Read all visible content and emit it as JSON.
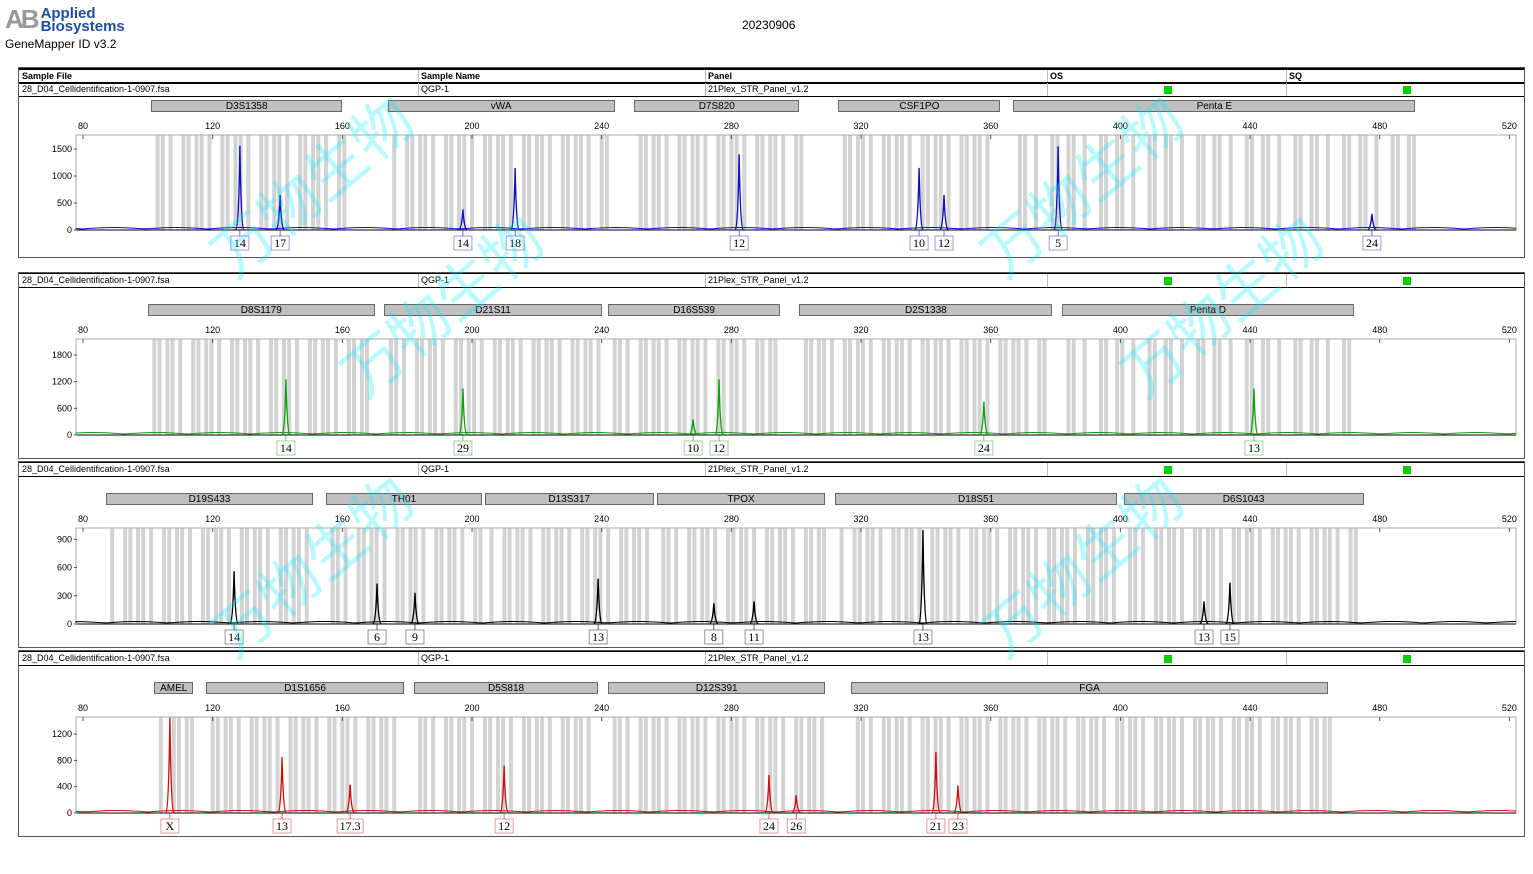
{
  "header": {
    "logo_text": "AB Applied Biosystems",
    "logo_line1": "Applied",
    "logo_line2": "Biosystems",
    "software": "GeneMapper ID v3.2",
    "date": "20230906"
  },
  "table_headers": {
    "sample_file": "Sample File",
    "sample_name": "Sample Name",
    "panel": "Panel",
    "os": "OS",
    "sq": "SQ"
  },
  "watermark": "万物生物",
  "colors": {
    "blue": "#1010c0",
    "green": "#10a010",
    "black": "#000000",
    "red": "#d01010",
    "bin": "#d3d3d3",
    "quality_ok": "#00d000"
  },
  "chart_data": [
    {
      "type": "line",
      "sample_file": "28_D04_Cellidentification-1-0907.fsa",
      "sample_name": "QGP-1",
      "panel": "21Plex_STR_Panel_v1.2",
      "os": "pass",
      "sq": "pass",
      "dye": "blue",
      "xlim": [
        80,
        520
      ],
      "xticks": [
        80,
        120,
        160,
        200,
        240,
        280,
        320,
        360,
        400,
        440,
        480,
        520
      ],
      "ylim": [
        0,
        1760
      ],
      "yticks": [
        0,
        500,
        1000,
        1500
      ],
      "markers": [
        {
          "name": "D3S1358",
          "range": [
            101,
            160
          ]
        },
        {
          "name": "vWA",
          "range": [
            174,
            244
          ]
        },
        {
          "name": "D7S820",
          "range": [
            250,
            301
          ]
        },
        {
          "name": "CSF1PO",
          "range": [
            313,
            363
          ]
        },
        {
          "name": "Penta E",
          "range": [
            367,
            491
          ]
        }
      ],
      "peaks": [
        {
          "size": 128.4,
          "height": 1560,
          "allele": "14"
        },
        {
          "size": 140.8,
          "height": 650,
          "allele": "17"
        },
        {
          "size": 197.2,
          "height": 380,
          "allele": "14"
        },
        {
          "size": 213.3,
          "height": 1150,
          "allele": "18"
        },
        {
          "size": 282.4,
          "height": 1400,
          "allele": "12"
        },
        {
          "size": 337.9,
          "height": 1150,
          "allele": "10"
        },
        {
          "size": 345.6,
          "height": 650,
          "allele": "12"
        },
        {
          "size": 380.8,
          "height": 1550,
          "allele": "5"
        },
        {
          "size": 477.6,
          "height": 300,
          "allele": "24"
        }
      ]
    },
    {
      "type": "line",
      "sample_file": "28_D04_Cellidentification-1-0907.fsa",
      "sample_name": "QGP-1",
      "panel": "21Plex_STR_Panel_v1.2",
      "os": "pass",
      "sq": "pass",
      "dye": "green",
      "xlim": [
        80,
        520
      ],
      "xticks": [
        80,
        120,
        160,
        200,
        240,
        280,
        320,
        360,
        400,
        440,
        480,
        520
      ],
      "ylim": [
        0,
        2160
      ],
      "yticks": [
        0,
        600,
        1200,
        1800
      ],
      "markers": [
        {
          "name": "D8S1179",
          "range": [
            100,
            170
          ]
        },
        {
          "name": "D21S11",
          "range": [
            173,
            240
          ]
        },
        {
          "name": "D16S539",
          "range": [
            242,
            295
          ]
        },
        {
          "name": "D2S1338",
          "range": [
            301,
            379
          ]
        },
        {
          "name": "Penta D",
          "range": [
            382,
            472
          ]
        }
      ],
      "peaks": [
        {
          "size": 142.6,
          "height": 1250,
          "allele": "14"
        },
        {
          "size": 197.2,
          "height": 1050,
          "allele": "29"
        },
        {
          "size": 268.2,
          "height": 350,
          "allele": "10"
        },
        {
          "size": 276.2,
          "height": 1250,
          "allele": "12"
        },
        {
          "size": 357.9,
          "height": 750,
          "allele": "24"
        },
        {
          "size": 441.2,
          "height": 1050,
          "allele": "13"
        }
      ]
    },
    {
      "type": "line",
      "sample_file": "28_D04_Cellidentification-1-0907.fsa",
      "sample_name": "QGP-1",
      "panel": "21Plex_STR_Panel_v1.2",
      "os": "pass",
      "sq": "pass",
      "dye": "black",
      "xlim": [
        80,
        520
      ],
      "xticks": [
        80,
        120,
        160,
        200,
        240,
        280,
        320,
        360,
        400,
        440,
        480,
        520
      ],
      "ylim": [
        0,
        1020
      ],
      "yticks": [
        0,
        300,
        600,
        900
      ],
      "markers": [
        {
          "name": "D19S433",
          "range": [
            87,
            151
          ]
        },
        {
          "name": "TH01",
          "range": [
            155,
            203
          ]
        },
        {
          "name": "D13S317",
          "range": [
            204,
            256
          ]
        },
        {
          "name": "TPOX",
          "range": [
            257,
            309
          ]
        },
        {
          "name": "D18S51",
          "range": [
            312,
            399
          ]
        },
        {
          "name": "D6S1043",
          "range": [
            401,
            475
          ]
        }
      ],
      "peaks": [
        {
          "size": 126.6,
          "height": 560,
          "allele": "14"
        },
        {
          "size": 170.7,
          "height": 430,
          "allele": "6"
        },
        {
          "size": 182.4,
          "height": 330,
          "allele": "9"
        },
        {
          "size": 238.9,
          "height": 480,
          "allele": "13"
        },
        {
          "size": 274.6,
          "height": 220,
          "allele": "8"
        },
        {
          "size": 287,
          "height": 240,
          "allele": "11"
        },
        {
          "size": 339.1,
          "height": 1000,
          "allele": "13"
        },
        {
          "size": 425.8,
          "height": 240,
          "allele": "13"
        },
        {
          "size": 433.8,
          "height": 440,
          "allele": "15"
        }
      ]
    },
    {
      "type": "line",
      "sample_file": "28_D04_Cellidentification-1-0907.fsa",
      "sample_name": "QGP-1",
      "panel": "21Plex_STR_Panel_v1.2",
      "os": "pass",
      "sq": "pass",
      "dye": "red",
      "xlim": [
        80,
        520
      ],
      "xticks": [
        80,
        120,
        160,
        200,
        240,
        280,
        320,
        360,
        400,
        440,
        480,
        520
      ],
      "ylim": [
        0,
        1460
      ],
      "yticks": [
        0,
        400,
        800,
        1200
      ],
      "markers": [
        {
          "name": "AMEL",
          "range": [
            102,
            114
          ]
        },
        {
          "name": "D1S1656",
          "range": [
            118,
            179
          ]
        },
        {
          "name": "D5S818",
          "range": [
            182,
            239
          ]
        },
        {
          "name": "D12S391",
          "range": [
            242,
            309
          ]
        },
        {
          "name": "FGA",
          "range": [
            317,
            464
          ]
        }
      ],
      "peaks": [
        {
          "size": 106.8,
          "height": 1450,
          "allele": "X"
        },
        {
          "size": 141.4,
          "height": 850,
          "allele": "13"
        },
        {
          "size": 162.4,
          "height": 430,
          "allele": "17.3"
        },
        {
          "size": 209.9,
          "height": 720,
          "allele": "12"
        },
        {
          "size": 291.6,
          "height": 580,
          "allele": "24"
        },
        {
          "size": 300,
          "height": 270,
          "allele": "26"
        },
        {
          "size": 343.1,
          "height": 930,
          "allele": "21"
        },
        {
          "size": 349.9,
          "height": 420,
          "allele": "23"
        }
      ]
    }
  ]
}
